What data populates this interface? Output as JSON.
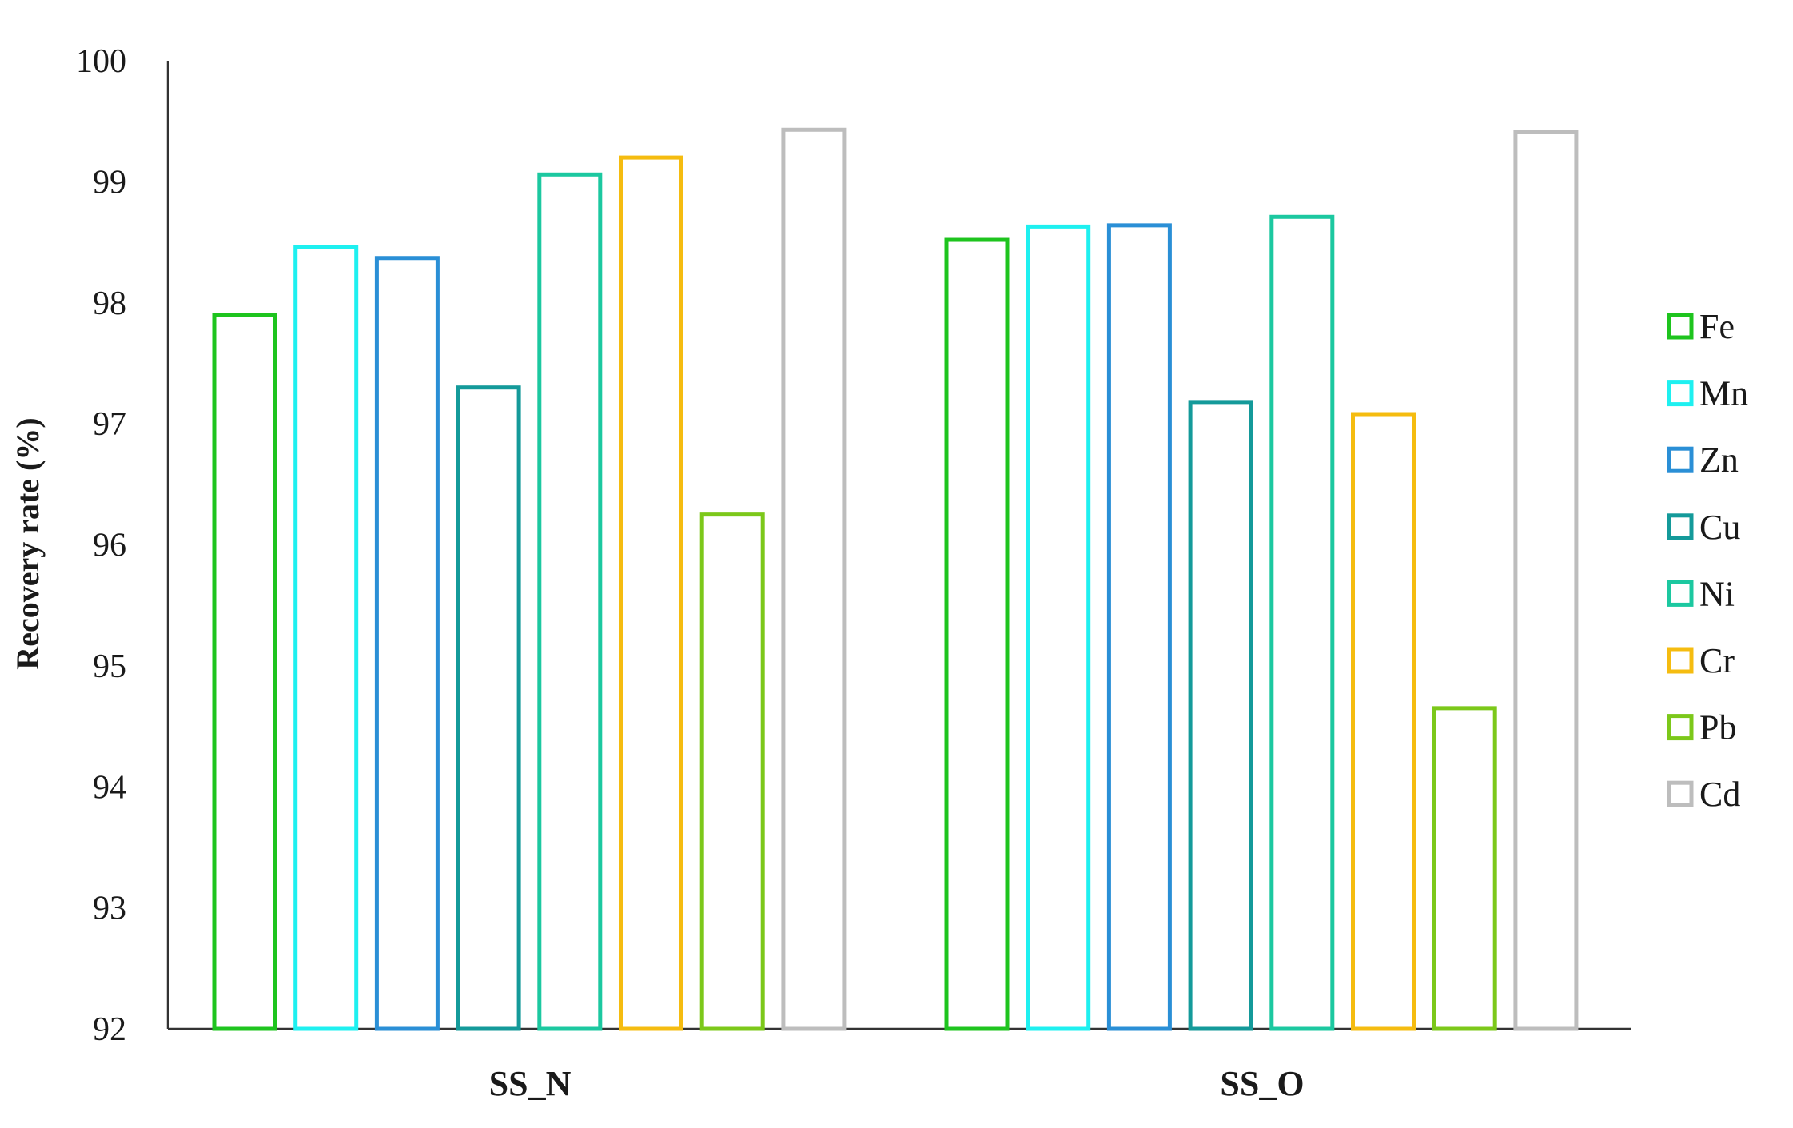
{
  "chart_data": {
    "type": "bar",
    "categories": [
      "SS_N",
      "SS_O"
    ],
    "series": [
      {
        "name": "Fe",
        "color": "#1ec41e",
        "values": [
          97.9,
          98.52
        ]
      },
      {
        "name": "Mn",
        "color": "#1ef0f0",
        "values": [
          98.46,
          98.63
        ]
      },
      {
        "name": "Zn",
        "color": "#2a8fd6",
        "values": [
          98.37,
          98.64
        ]
      },
      {
        "name": "Cu",
        "color": "#149a9a",
        "values": [
          97.3,
          97.18
        ]
      },
      {
        "name": "Ni",
        "color": "#1cc8a0",
        "values": [
          99.06,
          98.71
        ]
      },
      {
        "name": "Cr",
        "color": "#f5bc10",
        "values": [
          99.2,
          97.08
        ]
      },
      {
        "name": "Pb",
        "color": "#7cc81a",
        "values": [
          96.25,
          94.65
        ]
      },
      {
        "name": "Cd",
        "color": "#bdbdbd",
        "values": [
          99.43,
          99.41
        ]
      }
    ],
    "xlabel": "",
    "ylabel": "Recovery rate (%)",
    "ylim": [
      92,
      100
    ],
    "yticks": [
      92,
      93,
      94,
      95,
      96,
      97,
      98,
      99,
      100
    ],
    "grid": false,
    "legend_position": "right"
  }
}
